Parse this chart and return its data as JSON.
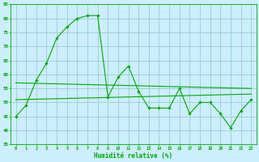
{
  "title": "",
  "xlabel": "Humidité relative (%)",
  "ylabel": "",
  "background_color": "#cceeff",
  "line_color": "#00aa00",
  "grid_color": "#99cccc",
  "xlim": [
    -0.5,
    23.5
  ],
  "ylim": [
    35,
    85
  ],
  "yticks": [
    35,
    40,
    45,
    50,
    55,
    60,
    65,
    70,
    75,
    80,
    85
  ],
  "xticks": [
    0,
    1,
    2,
    3,
    4,
    5,
    6,
    7,
    8,
    9,
    10,
    11,
    12,
    13,
    14,
    15,
    16,
    17,
    18,
    19,
    20,
    21,
    22,
    23
  ],
  "main_series": [
    45,
    49,
    58,
    64,
    73,
    77,
    80,
    81,
    81,
    52,
    59,
    63,
    54,
    48,
    48,
    48,
    55,
    46,
    50,
    50,
    46,
    41,
    47,
    51
  ],
  "trend1_x": [
    0,
    23
  ],
  "trend1_y": [
    57,
    55
  ],
  "trend2_x": [
    0,
    23
  ],
  "trend2_y": [
    51,
    53
  ]
}
